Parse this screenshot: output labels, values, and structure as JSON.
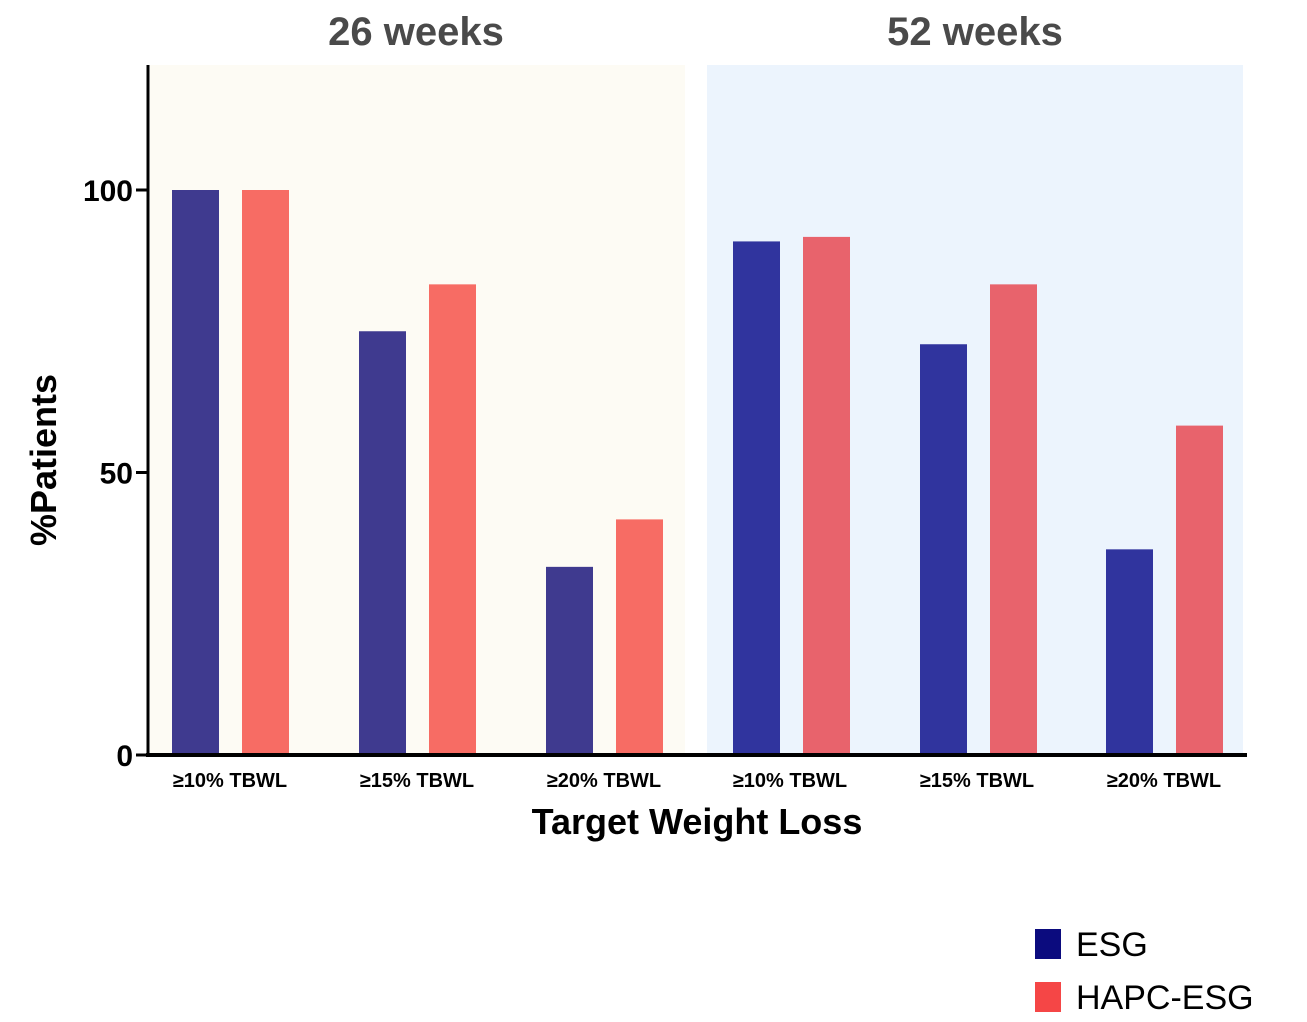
{
  "chart_data": {
    "type": "bar",
    "xlabel": "Target Weight Loss",
    "ylabel": "%Patients",
    "ylim": [
      0,
      120
    ],
    "yticks": [
      "0",
      "50",
      "100"
    ],
    "groups": [
      {
        "title": "26 weeks",
        "background": "#fdfbf4",
        "categories": [
          "≥10% TBWL",
          "≥15% TBWL",
          "≥20% TBWL"
        ],
        "series": [
          {
            "name": "ESG",
            "color": "#3f3a8f",
            "values": [
              100,
              75,
              33.3
            ]
          },
          {
            "name": "HAPC-ESG",
            "color": "#f76c64",
            "values": [
              100,
              83.3,
              41.7
            ]
          }
        ]
      },
      {
        "title": "52 weeks",
        "background": "#ecf4fd",
        "categories": [
          "≥10% TBWL",
          "≥15% TBWL",
          "≥20% TBWL"
        ],
        "series": [
          {
            "name": "ESG",
            "color": "#30349e",
            "values": [
              90.9,
              72.7,
              36.4
            ]
          },
          {
            "name": "HAPC-ESG",
            "color": "#e8636c",
            "values": [
              91.7,
              83.3,
              58.3
            ]
          }
        ]
      }
    ],
    "legend": {
      "position": "bottom-right",
      "items": [
        {
          "name": "ESG",
          "color": "#0b0b7e"
        },
        {
          "name": "HAPC-ESG",
          "color": "#f54646"
        }
      ]
    }
  }
}
